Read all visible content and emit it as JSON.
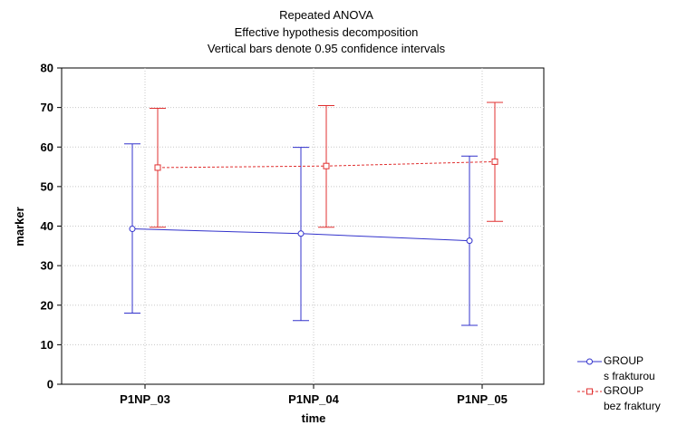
{
  "chart_data": {
    "type": "line",
    "title": "Repeated ANOVA",
    "subtitle": "Effective hypothesis decomposition",
    "subtitle2": "Vertical bars denote 0.95 confidence intervals",
    "xlabel": "time",
    "ylabel": "marker",
    "categories": [
      "P1NP_03",
      "P1NP_04",
      "P1NP_05"
    ],
    "ylim": [
      0,
      80
    ],
    "yticks": [
      0,
      10,
      20,
      30,
      40,
      50,
      60,
      70,
      80
    ],
    "grid": true,
    "legend_position": "bottom-right, outside plot",
    "series": [
      {
        "name": "GROUP s frakturou",
        "legend_line1": "GROUP",
        "legend_line2": "s frakturou",
        "color": "#3333cc",
        "marker": "circle",
        "line_style": "solid",
        "values": [
          39.3,
          38.1,
          36.3
        ],
        "ci_low": [
          18.0,
          16.1,
          14.9
        ],
        "ci_high": [
          60.8,
          59.9,
          57.7
        ]
      },
      {
        "name": "GROUP bez fraktury",
        "legend_line1": "GROUP",
        "legend_line2": "bez fraktury",
        "color": "#e03030",
        "marker": "square",
        "line_style": "dashed",
        "values": [
          54.8,
          55.2,
          56.3
        ],
        "ci_low": [
          39.7,
          39.7,
          41.2
        ],
        "ci_high": [
          69.8,
          70.5,
          71.3
        ]
      }
    ]
  }
}
